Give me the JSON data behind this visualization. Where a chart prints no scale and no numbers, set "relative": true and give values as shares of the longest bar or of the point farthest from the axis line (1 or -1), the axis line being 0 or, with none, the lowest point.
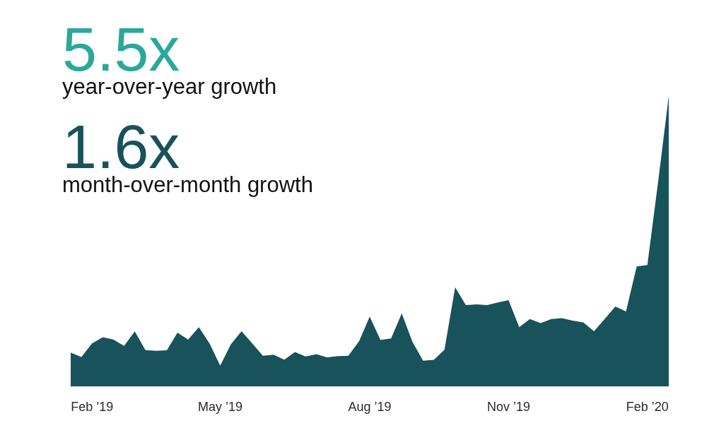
{
  "chart_data": {
    "type": "area",
    "annotations": [
      "5.5x",
      "year-over-year growth",
      "1.6x",
      "month-over-month growth"
    ],
    "relative": true,
    "color": "#18525a",
    "categories": [
      null,
      null,
      "Feb ’19",
      null,
      null,
      null,
      null,
      null,
      null,
      null,
      null,
      null,
      null,
      null,
      "May ’19",
      null,
      null,
      null,
      null,
      null,
      null,
      null,
      null,
      null,
      null,
      null,
      null,
      null,
      "Aug ’19",
      null,
      null,
      null,
      null,
      null,
      null,
      null,
      null,
      null,
      null,
      null,
      null,
      "Nov ’19",
      null,
      null,
      null,
      null,
      null,
      null,
      null,
      null,
      null,
      null,
      null,
      null,
      "Feb ’20",
      null,
      null
    ],
    "values": [
      0.116,
      0.101,
      0.148,
      0.169,
      0.161,
      0.139,
      0.189,
      0.125,
      0.122,
      0.124,
      0.185,
      0.161,
      0.204,
      0.148,
      0.071,
      0.145,
      0.19,
      0.148,
      0.105,
      0.109,
      0.092,
      0.118,
      0.103,
      0.111,
      0.1,
      0.104,
      0.105,
      0.155,
      0.24,
      0.16,
      0.165,
      0.251,
      0.153,
      0.088,
      0.091,
      0.126,
      0.341,
      0.28,
      0.282,
      0.28,
      0.289,
      0.297,
      0.204,
      0.232,
      0.218,
      0.232,
      0.235,
      0.226,
      0.22,
      0.19,
      0.232,
      0.275,
      0.258,
      0.413,
      0.418,
      0.703,
      1
    ]
  }
}
